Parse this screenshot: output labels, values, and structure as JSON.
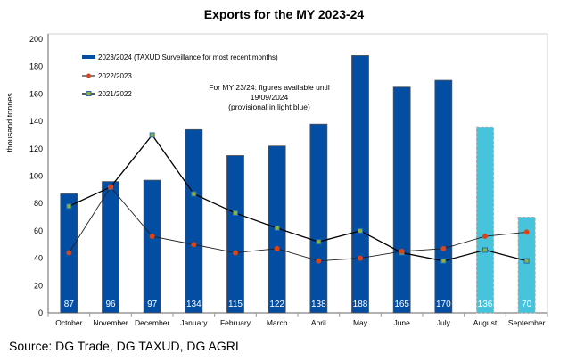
{
  "chart_data": {
    "type": "bar",
    "title": "Exports for the MY 2023-24",
    "ylabel": "thousand tonnes",
    "xlabel": "",
    "ylim": [
      0,
      200
    ],
    "yticks": [
      0,
      20,
      40,
      60,
      80,
      100,
      120,
      140,
      160,
      180,
      200
    ],
    "categories": [
      "October",
      "November",
      "December",
      "January",
      "February",
      "March",
      "April",
      "May",
      "June",
      "July",
      "August",
      "September"
    ],
    "series": [
      {
        "name": "2023/2024 (TAXUD Surveillance for most recent months)",
        "type": "bar",
        "color": "#034ea2",
        "provisional_color": "#47c3dc",
        "values": [
          87,
          96,
          97,
          134,
          115,
          122,
          138,
          188,
          165,
          170,
          136,
          70
        ],
        "provisional": [
          false,
          false,
          false,
          false,
          false,
          false,
          false,
          false,
          false,
          false,
          true,
          true
        ]
      },
      {
        "name": "2022/2023",
        "type": "line",
        "color": "#d9441c",
        "values": [
          44,
          92,
          56,
          50,
          44,
          47,
          38,
          40,
          45,
          47,
          56,
          59
        ]
      },
      {
        "name": "2021/2022",
        "type": "line",
        "color": "#1f6fb5",
        "values": [
          78,
          92,
          130,
          87,
          73,
          62,
          52,
          60,
          44,
          38,
          46,
          38
        ]
      }
    ],
    "annotation": [
      "For MY 23/24: figures available until",
      "19/09/2024",
      "(provisional in light blue)"
    ],
    "legend_position": "top-left",
    "grid": false
  },
  "source": "Source: DG Trade, DG TAXUD, DG AGRI"
}
